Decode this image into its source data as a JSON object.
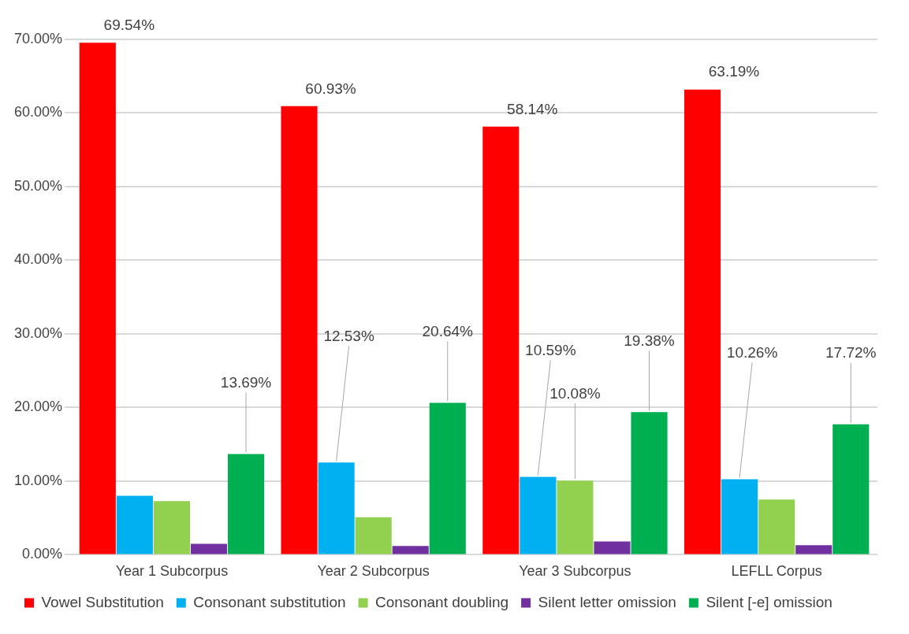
{
  "chart_data": {
    "type": "bar",
    "categories": [
      "Year 1 Subcorpus",
      "Year 2 Subcorpus",
      "Year 3 Subcorpus",
      "LEFLL Corpus"
    ],
    "series": [
      {
        "name": "Vowel Substitution",
        "color": "#ff0000",
        "values": [
          69.54,
          60.93,
          58.14,
          63.19
        ],
        "value_labels": [
          "69.54%",
          "60.93%",
          "58.14%",
          "63.19%"
        ]
      },
      {
        "name": "Consonant substitution",
        "color": "#00b0f0",
        "values": [
          8.0,
          12.53,
          10.59,
          10.26
        ],
        "value_labels": [
          null,
          "12.53%",
          "10.59%",
          "10.26%"
        ]
      },
      {
        "name": "Consonant doubling",
        "color": "#92d050",
        "values": [
          7.3,
          5.1,
          10.08,
          7.5
        ],
        "value_labels": [
          null,
          null,
          "10.08%",
          null
        ]
      },
      {
        "name": "Silent letter omission",
        "color": "#7030a0",
        "values": [
          1.5,
          1.2,
          1.8,
          1.3
        ],
        "value_labels": [
          null,
          null,
          null,
          null
        ]
      },
      {
        "name": "Silent [-e] omission",
        "color": "#00b050",
        "values": [
          13.69,
          20.64,
          19.38,
          17.72
        ],
        "value_labels": [
          "13.69%",
          "20.64%",
          "19.38%",
          "17.72%"
        ]
      }
    ],
    "ylim": [
      0,
      70
    ],
    "yticks": [
      {
        "value": 0,
        "label": "0.00%"
      },
      {
        "value": 10,
        "label": "10.00%"
      },
      {
        "value": 20,
        "label": "20.00%"
      },
      {
        "value": 30,
        "label": "30.00%"
      },
      {
        "value": 40,
        "label": "40.00%"
      },
      {
        "value": 50,
        "label": "50.00%"
      },
      {
        "value": 60,
        "label": "60.00%"
      },
      {
        "value": 70,
        "label": "70.00%"
      }
    ],
    "grid": "y",
    "legend": "bottom"
  }
}
